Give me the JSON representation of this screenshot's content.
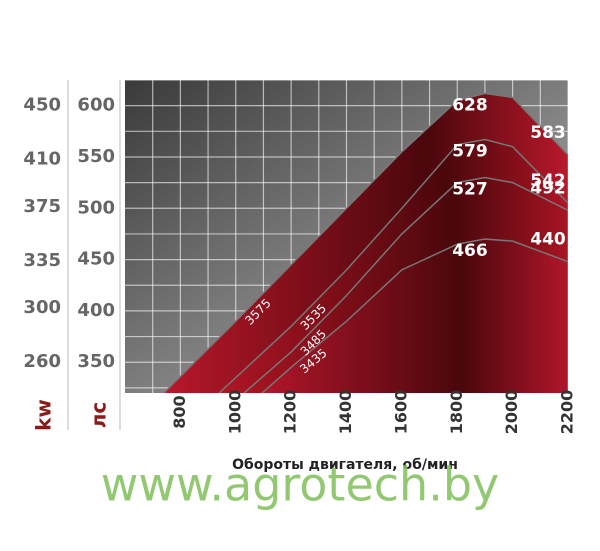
{
  "chart_data": {
    "type": "area",
    "xlabel": "Обороты двигателя, об/мин",
    "ylabel": "лс",
    "y2label": "kw",
    "watermark": "www.agrotech.by",
    "xlim": [
      600,
      2200
    ],
    "xticks": [
      800,
      1000,
      1200,
      1400,
      1600,
      1800,
      2000,
      2200
    ],
    "ylim": [
      320,
      625
    ],
    "yticks": [
      350,
      400,
      450,
      500,
      550,
      600
    ],
    "y2lim": [
      237,
      469
    ],
    "y2ticks": [
      260,
      300,
      335,
      375,
      410,
      450
    ],
    "grid": true,
    "series": [
      {
        "name": "3575",
        "color": "#b8182a",
        "x": [
          740,
          1000,
          1200,
          1400,
          1600,
          1800,
          1900,
          2000,
          2200
        ],
        "values": [
          320,
          390,
          445,
          500,
          555,
          605,
          612,
          608,
          552
        ],
        "annotations": [
          "628",
          "583"
        ]
      },
      {
        "name": "3535",
        "color": "#b01525",
        "x": [
          940,
          1200,
          1400,
          1600,
          1800,
          1900,
          2000,
          2200
        ],
        "values": [
          320,
          385,
          440,
          500,
          562,
          567,
          560,
          505
        ],
        "annotations": [
          "579",
          "542"
        ]
      },
      {
        "name": "3485",
        "color": "#a81422",
        "x": [
          1030,
          1200,
          1400,
          1600,
          1800,
          1900,
          2000,
          2200
        ],
        "values": [
          320,
          360,
          415,
          475,
          525,
          530,
          525,
          498
        ],
        "annotations": [
          "527",
          "492"
        ]
      },
      {
        "name": "3435",
        "color": "#b0162a",
        "x": [
          1095,
          1200,
          1400,
          1600,
          1800,
          1900,
          2000,
          2200
        ],
        "values": [
          320,
          345,
          390,
          440,
          465,
          470,
          468,
          448
        ],
        "annotations": [
          "466",
          "440"
        ]
      }
    ]
  }
}
